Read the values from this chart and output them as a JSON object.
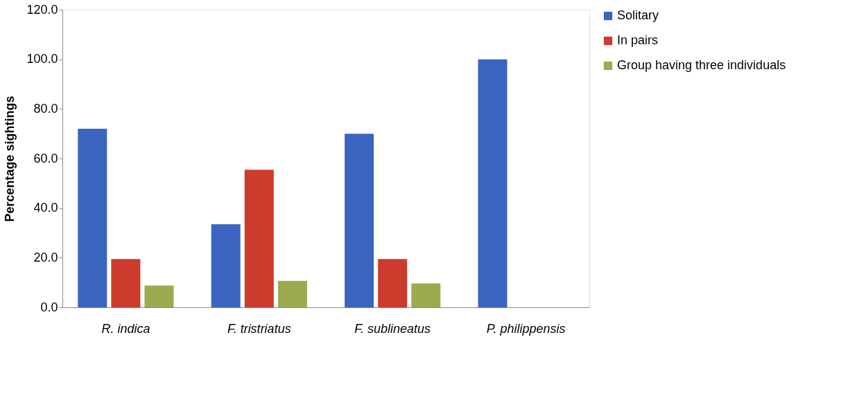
{
  "chart_data": {
    "type": "bar",
    "ylabel": "Percentage sightings",
    "categories": [
      "R. indica",
      "F. tristriatus",
      "F. sublineatus",
      "P. philippensis"
    ],
    "series": [
      {
        "name": "Solitary",
        "color": "#3a64c0",
        "values": [
          72.0,
          33.5,
          70.0,
          100.0
        ]
      },
      {
        "name": "In pairs",
        "color": "#cc3b2b",
        "values": [
          19.5,
          55.5,
          19.5,
          0
        ]
      },
      {
        "name": "Group having three individuals",
        "color": "#9bab50",
        "values": [
          8.8,
          10.7,
          9.6,
          0
        ]
      }
    ],
    "ylim": [
      0,
      120
    ],
    "yticks": [
      {
        "value": 0,
        "label": "0.0"
      },
      {
        "value": 20,
        "label": "20.0"
      },
      {
        "value": 40,
        "label": "40.0"
      },
      {
        "value": 60,
        "label": "60.0"
      },
      {
        "value": 80,
        "label": "80.0"
      },
      {
        "value": 100,
        "label": "100.0"
      },
      {
        "value": 120,
        "label": "120.0"
      }
    ],
    "grid": false,
    "legend": "right"
  }
}
